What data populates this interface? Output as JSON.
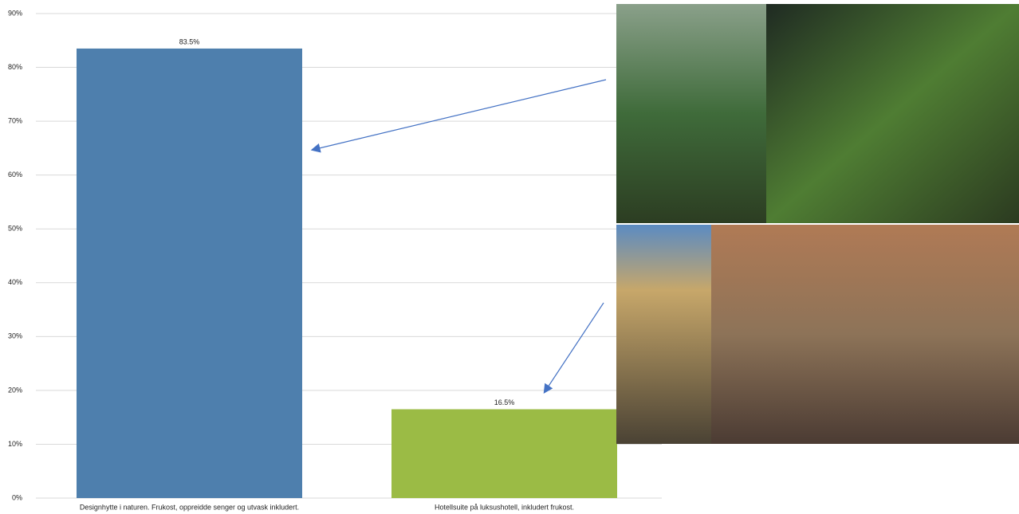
{
  "chart_data": {
    "type": "bar",
    "categories": [
      "Designhytte i naturen. Frukost, oppreidde senger og utvask inkludert.",
      "Hotellsuite på luksushotell, inkludert frukost."
    ],
    "values": [
      83.5,
      16.5
    ],
    "value_labels": [
      "83.5%",
      "16.5%"
    ],
    "colors": [
      "#4e7fad",
      "#9bbb45"
    ],
    "ylim": [
      0,
      90
    ],
    "yticks": [
      {
        "value": 0,
        "label": "0%"
      },
      {
        "value": 10,
        "label": "10%"
      },
      {
        "value": 20,
        "label": "20%"
      },
      {
        "value": 30,
        "label": "30%"
      },
      {
        "value": 40,
        "label": "40%"
      },
      {
        "value": 50,
        "label": "50%"
      },
      {
        "value": 60,
        "label": "60%"
      },
      {
        "value": 70,
        "label": "70%"
      },
      {
        "value": 80,
        "label": "80%"
      },
      {
        "value": 90,
        "label": "90%"
      }
    ],
    "grid": true
  }
}
